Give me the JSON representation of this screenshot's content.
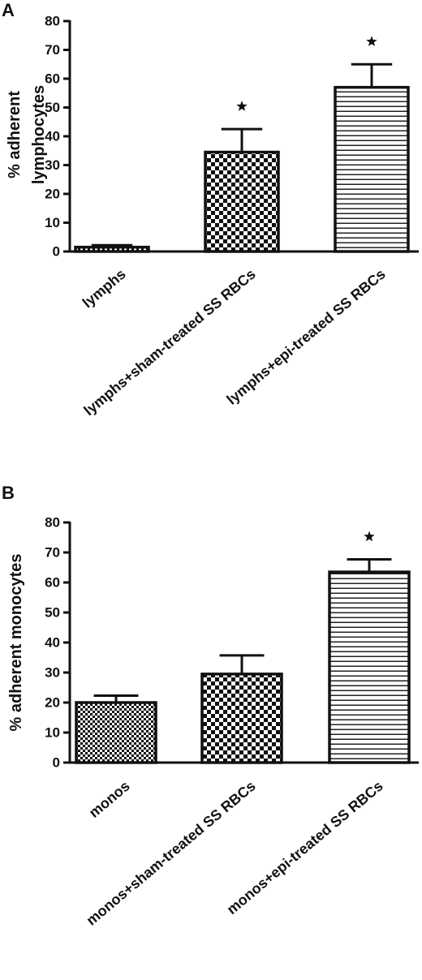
{
  "chart_data": [
    {
      "panel": "A",
      "type": "bar",
      "categories": [
        "lymphs",
        "lymphs+sham-treated SS RBCs",
        "lymphs+epi-treated SS RBCs"
      ],
      "values": [
        1.5,
        34.5,
        57
      ],
      "errors": [
        0.7,
        8,
        8
      ],
      "significant": [
        false,
        true,
        true
      ],
      "patterns": [
        "fine-check",
        "check",
        "hstripe"
      ],
      "ylabel": [
        "% adherent",
        "lymphocytes"
      ],
      "ylim": [
        0,
        80
      ],
      "yticks": [
        0,
        10,
        20,
        30,
        40,
        50,
        60,
        70,
        80
      ],
      "significance_marker": "★"
    },
    {
      "panel": "B",
      "type": "bar",
      "categories": [
        "monos",
        "monos+sham-treated SS RBCs",
        "monos+epi-treated SS RBCs"
      ],
      "values": [
        20,
        29.5,
        63.5
      ],
      "errors": [
        2.3,
        6.2,
        4.2
      ],
      "significant": [
        false,
        false,
        true
      ],
      "patterns": [
        "fine-check",
        "check",
        "hstripe"
      ],
      "ylabel": [
        "% adherent monocytes"
      ],
      "ylim": [
        0,
        80
      ],
      "yticks": [
        0,
        10,
        20,
        30,
        40,
        50,
        60,
        70,
        80
      ],
      "significance_marker": "★"
    }
  ]
}
